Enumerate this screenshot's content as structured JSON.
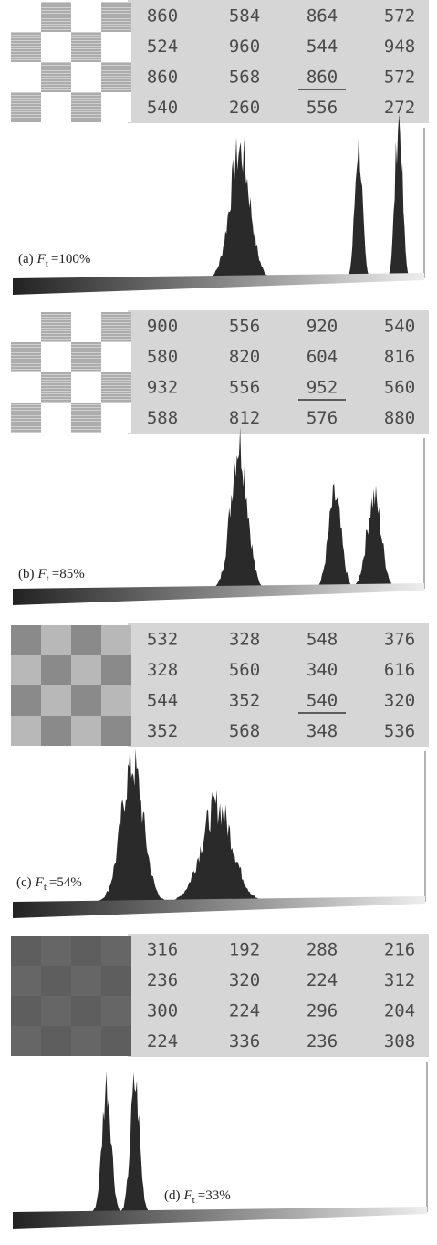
{
  "panels": [
    {
      "label": {
        "tag": "(a)",
        "symbol": "F",
        "subscript": "t",
        "value": "=100%"
      },
      "table": {
        "rows": [
          [
            "860",
            "584",
            "864",
            "572"
          ],
          [
            "524",
            "960",
            "544",
            "948"
          ],
          [
            "860",
            "568",
            "860",
            "572"
          ],
          [
            "540",
            "260",
            "556",
            "272"
          ]
        ],
        "underlined": [
          2,
          2
        ]
      }
    },
    {
      "label": {
        "tag": "(b)",
        "symbol": "F",
        "subscript": "t",
        "value": "=85%"
      },
      "table": {
        "rows": [
          [
            "900",
            "556",
            "920",
            "540"
          ],
          [
            "580",
            "820",
            "604",
            "816"
          ],
          [
            "932",
            "556",
            "952",
            "560"
          ],
          [
            "588",
            "812",
            "576",
            "880"
          ]
        ],
        "underlined": [
          2,
          2
        ]
      }
    },
    {
      "label": {
        "tag": "(c)",
        "symbol": "F",
        "subscript": "t",
        "value": "=54%"
      },
      "table": {
        "rows": [
          [
            "532",
            "328",
            "548",
            "376"
          ],
          [
            "328",
            "560",
            "340",
            "616"
          ],
          [
            "544",
            "352",
            "540",
            "320"
          ],
          [
            "352",
            "568",
            "348",
            "536"
          ]
        ],
        "underlined": [
          2,
          2
        ]
      }
    },
    {
      "label": {
        "tag": "(d)",
        "symbol": "F",
        "subscript": "t",
        "value": "=33%"
      },
      "table": {
        "rows": [
          [
            "316",
            "192",
            "288",
            "216"
          ],
          [
            "236",
            "320",
            "224",
            "312"
          ],
          [
            "300",
            "224",
            "296",
            "204"
          ],
          [
            "224",
            "336",
            "236",
            "308"
          ]
        ]
      }
    }
  ]
}
